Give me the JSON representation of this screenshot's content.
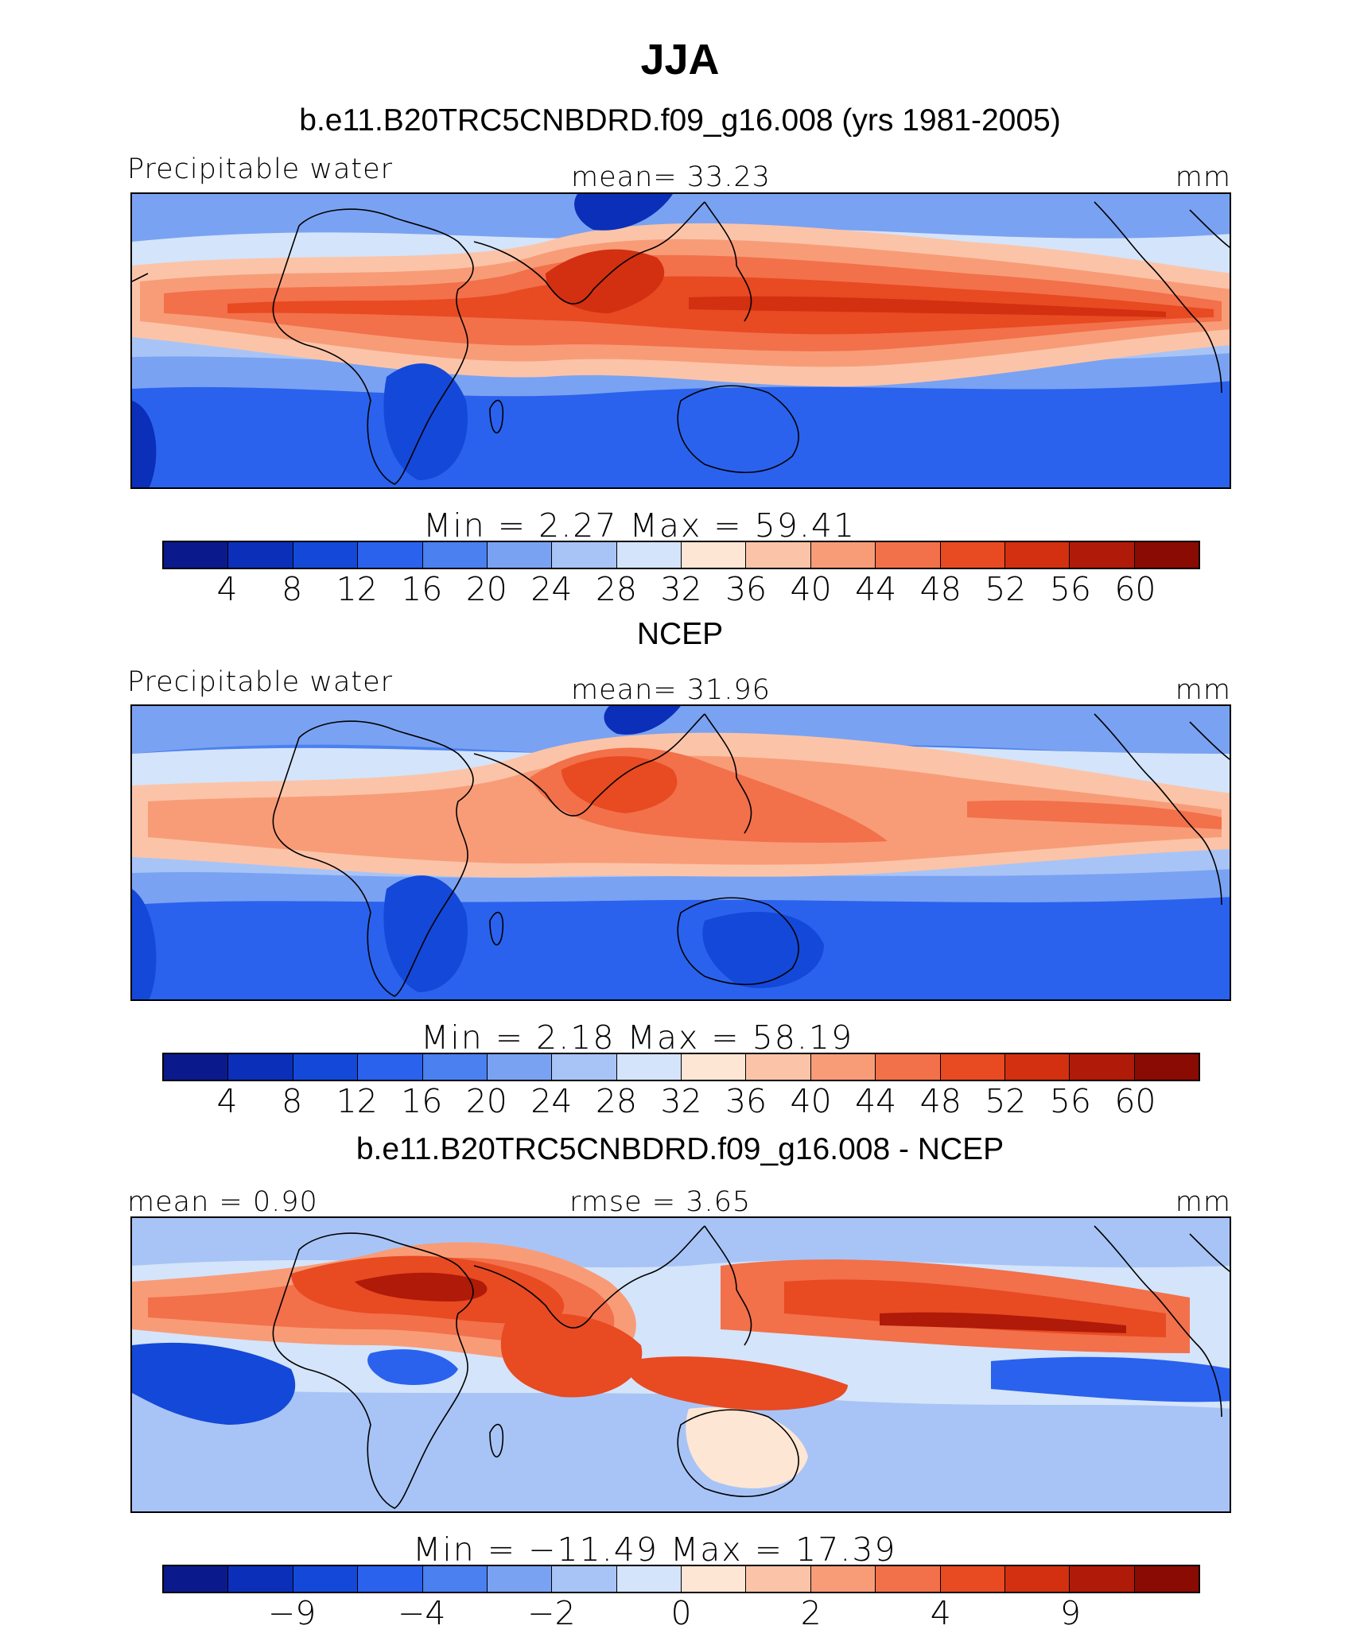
{
  "title": "JJA",
  "panels": [
    {
      "subtitle": "b.e11.B20TRC5CNBDRD.f09_g16.008 (yrs 1981-2005)",
      "left_label": "Precipitable water",
      "center_label": "mean=   33.23",
      "right_label": "mm",
      "minmax": "Min  =     2.27  Max  =    59.41",
      "colorbar_labels": [
        "4",
        "8",
        "12",
        "16",
        "20",
        "24",
        "28",
        "32",
        "36",
        "40",
        "44",
        "48",
        "52",
        "56",
        "60"
      ]
    },
    {
      "subtitle": "NCEP",
      "left_label": "Precipitable water",
      "center_label": "mean=   31.96",
      "right_label": "mm",
      "minmax": "Min  =     2.18  Max  =    58.19",
      "colorbar_labels": [
        "4",
        "8",
        "12",
        "16",
        "20",
        "24",
        "28",
        "32",
        "36",
        "40",
        "44",
        "48",
        "52",
        "56",
        "60"
      ]
    },
    {
      "subtitle": "b.e11.B20TRC5CNBDRD.f09_g16.008 - NCEP",
      "left_label": "mean =     0.90",
      "center_label": "rmse  =     3.65",
      "right_label": "mm",
      "minmax": "Min  = −11.49  Max  =    17.39",
      "colorbar_labels": [
        "−9",
        "−4",
        "−2",
        "0",
        "2",
        "4",
        "9"
      ]
    }
  ],
  "colors": {
    "palette": [
      "#0a1a8c",
      "#0b2fb8",
      "#1448d8",
      "#2a62ee",
      "#4a80f0",
      "#7aa2f2",
      "#a8c4f6",
      "#d4e4fa",
      "#fde6d4",
      "#fbc4a8",
      "#f89c78",
      "#f2704a",
      "#e84a22",
      "#d23010",
      "#b01a08",
      "#8a0a04"
    ]
  }
}
